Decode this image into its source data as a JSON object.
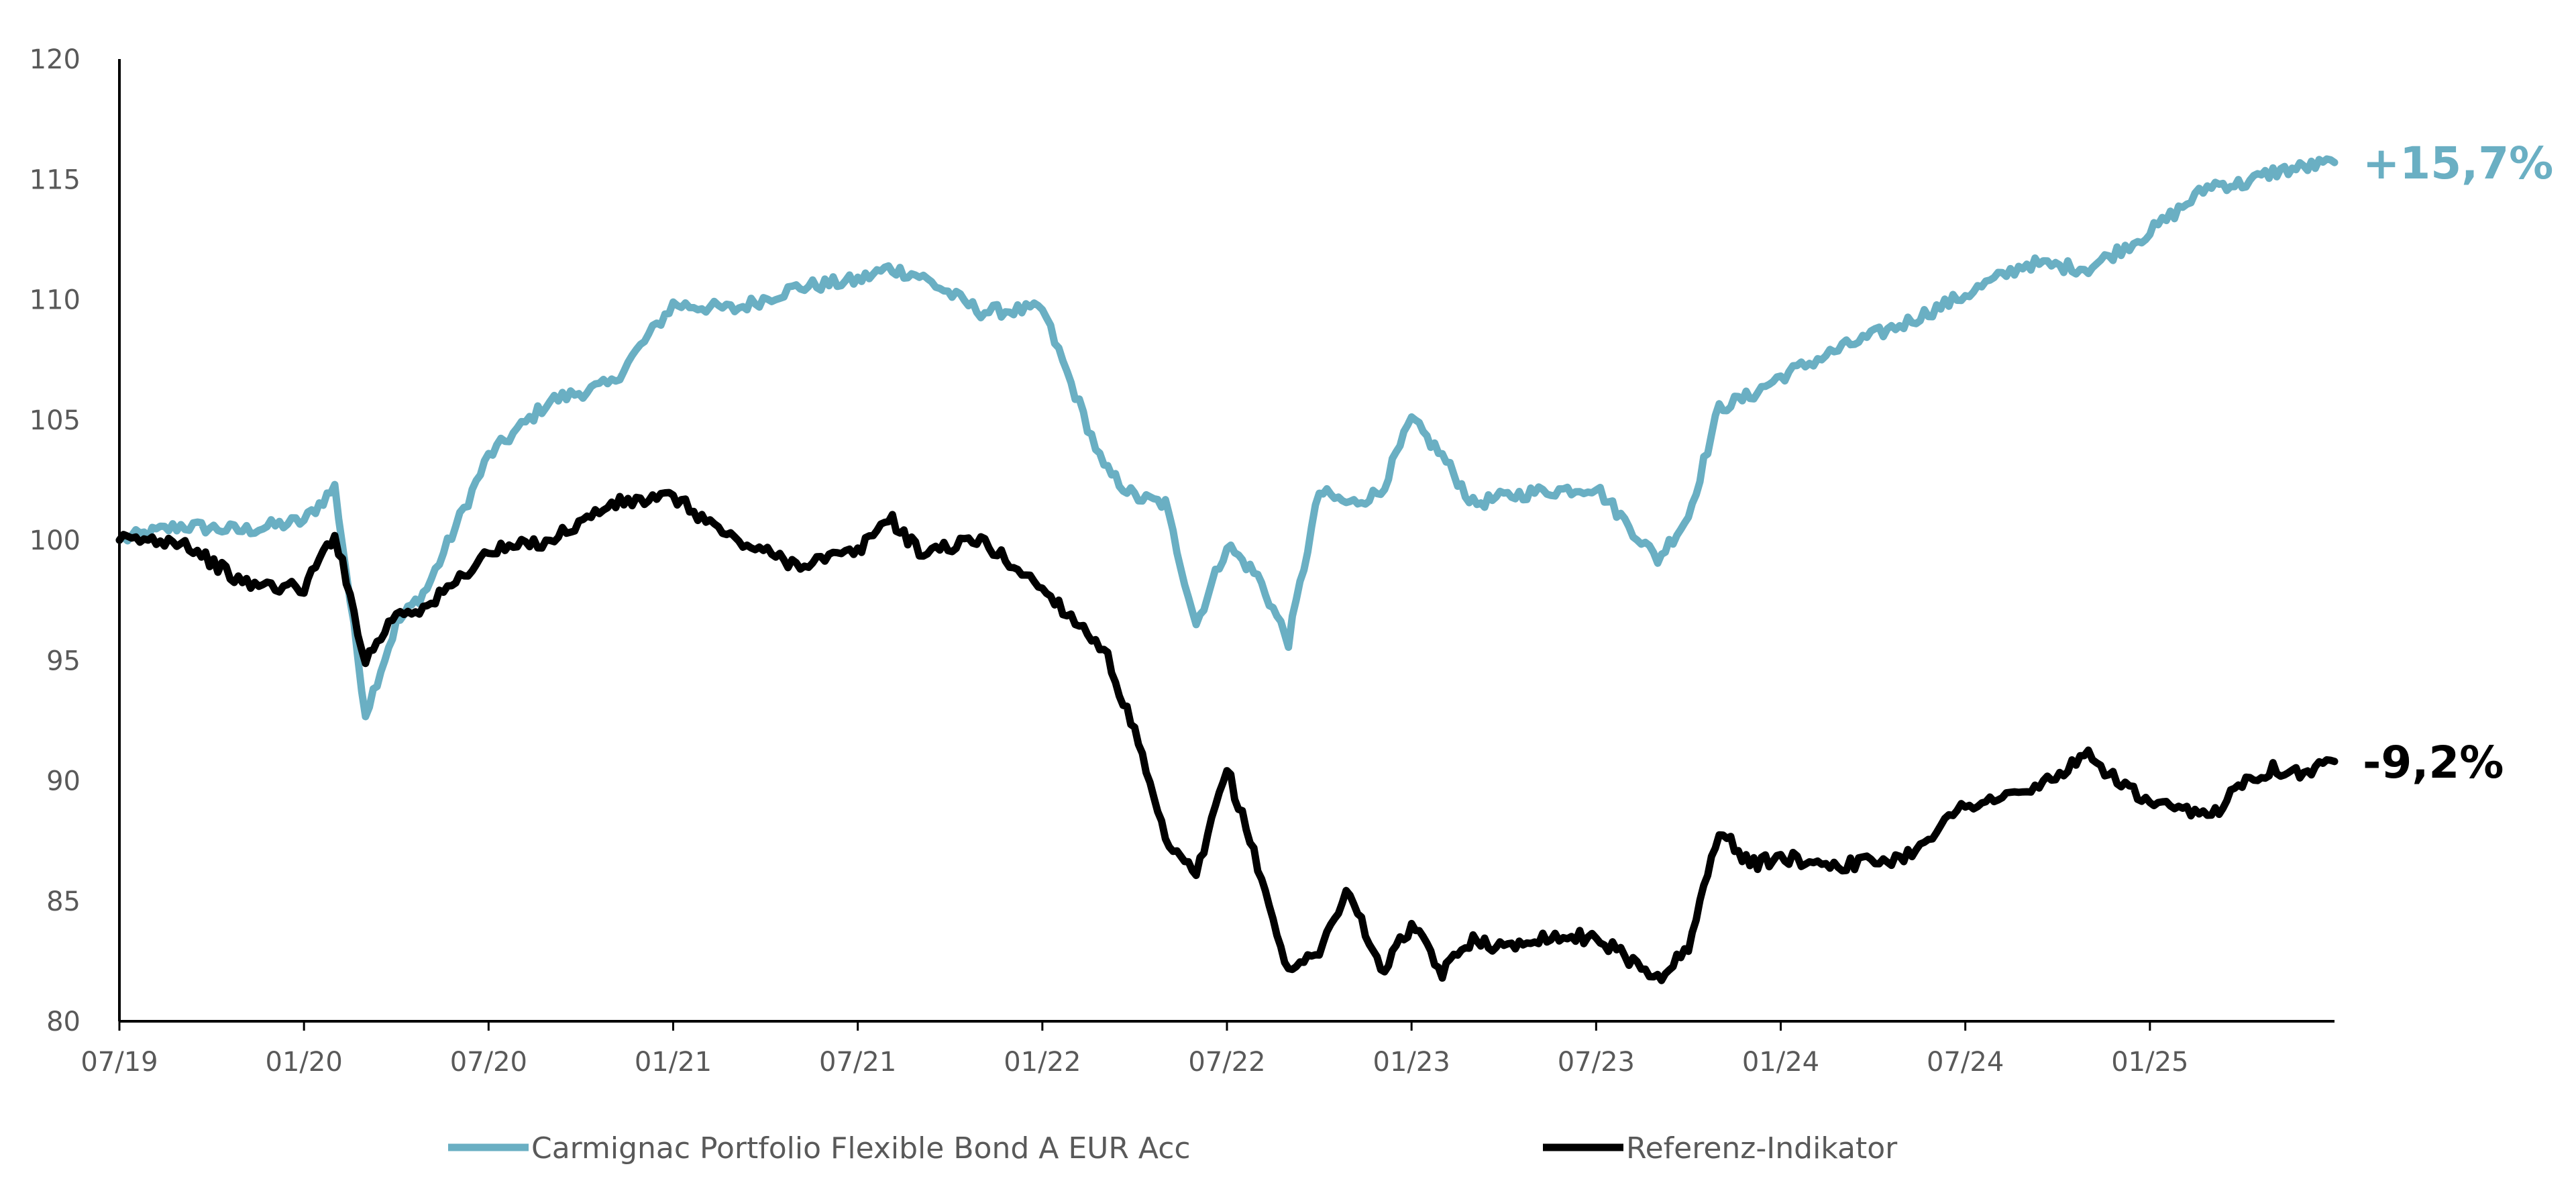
{
  "chart_data": {
    "type": "line",
    "x": [
      "07/19",
      "09/19",
      "11/19",
      "01/20",
      "02/20",
      "03/20",
      "04/20",
      "05/20",
      "07/20",
      "09/20",
      "11/20",
      "01/21",
      "03/21",
      "05/21",
      "07/21",
      "08/21",
      "09/21",
      "11/21",
      "01/22",
      "03/22",
      "04/22",
      "05/22",
      "06/22",
      "07/22",
      "08/22",
      "09/22",
      "10/22",
      "11/22",
      "12/22",
      "01/23",
      "02/23",
      "03/23",
      "04/23",
      "05/23",
      "07/23",
      "09/23",
      "10/23",
      "11/23",
      "12/23",
      "01/24",
      "03/24",
      "05/24",
      "07/24",
      "09/24",
      "11/24",
      "01/25",
      "03/25",
      "04/25",
      "05/25",
      "06/25",
      "07/25"
    ],
    "x_ticks": [
      "07/19",
      "01/20",
      "07/20",
      "01/21",
      "07/21",
      "01/22",
      "07/22",
      "01/23",
      "07/23",
      "01/24",
      "07/24",
      "01/25"
    ],
    "ylim": [
      80,
      120
    ],
    "y_ticks": [
      80,
      85,
      90,
      95,
      100,
      105,
      110,
      115,
      120
    ],
    "series": [
      {
        "name": "Carmignac Portfolio Flexible Bond A EUR Acc",
        "color": "#6aafc3",
        "end_label": "+15,7%",
        "values": [
          100.0,
          100.6,
          100.4,
          100.8,
          102.2,
          92.8,
          96.5,
          98.0,
          103.5,
          105.8,
          106.5,
          109.8,
          109.6,
          110.5,
          110.8,
          111.3,
          111.0,
          109.5,
          109.6,
          103.0,
          101.8,
          101.5,
          96.5,
          99.8,
          98.5,
          95.8,
          102.0,
          101.5,
          102.0,
          105.0,
          103.5,
          101.5,
          101.8,
          102.0,
          102.2,
          99.2,
          101.0,
          105.5,
          106.0,
          106.8,
          108.0,
          109.0,
          110.2,
          111.5,
          111.3,
          112.8,
          114.8,
          114.8,
          115.3,
          115.5,
          115.7
        ]
      },
      {
        "name": "Referenz-Indikator",
        "color": "#000000",
        "end_label": "-9,2%",
        "values": [
          100.0,
          100.0,
          98.2,
          98.0,
          100.3,
          95.0,
          97.0,
          97.2,
          99.5,
          100.0,
          101.5,
          101.8,
          100.0,
          99.0,
          99.5,
          101.0,
          99.5,
          100.0,
          98.0,
          95.5,
          92.0,
          87.5,
          86.0,
          90.5,
          86.5,
          82.0,
          83.0,
          85.5,
          82.0,
          84.0,
          82.0,
          83.5,
          83.0,
          83.5,
          83.5,
          81.8,
          83.0,
          88.0,
          86.5,
          86.8,
          86.5,
          86.8,
          89.0,
          89.5,
          91.0,
          89.0,
          88.5,
          90.0,
          90.5,
          90.3,
          90.8
        ]
      }
    ],
    "legend": "bottom",
    "grid": false
  }
}
